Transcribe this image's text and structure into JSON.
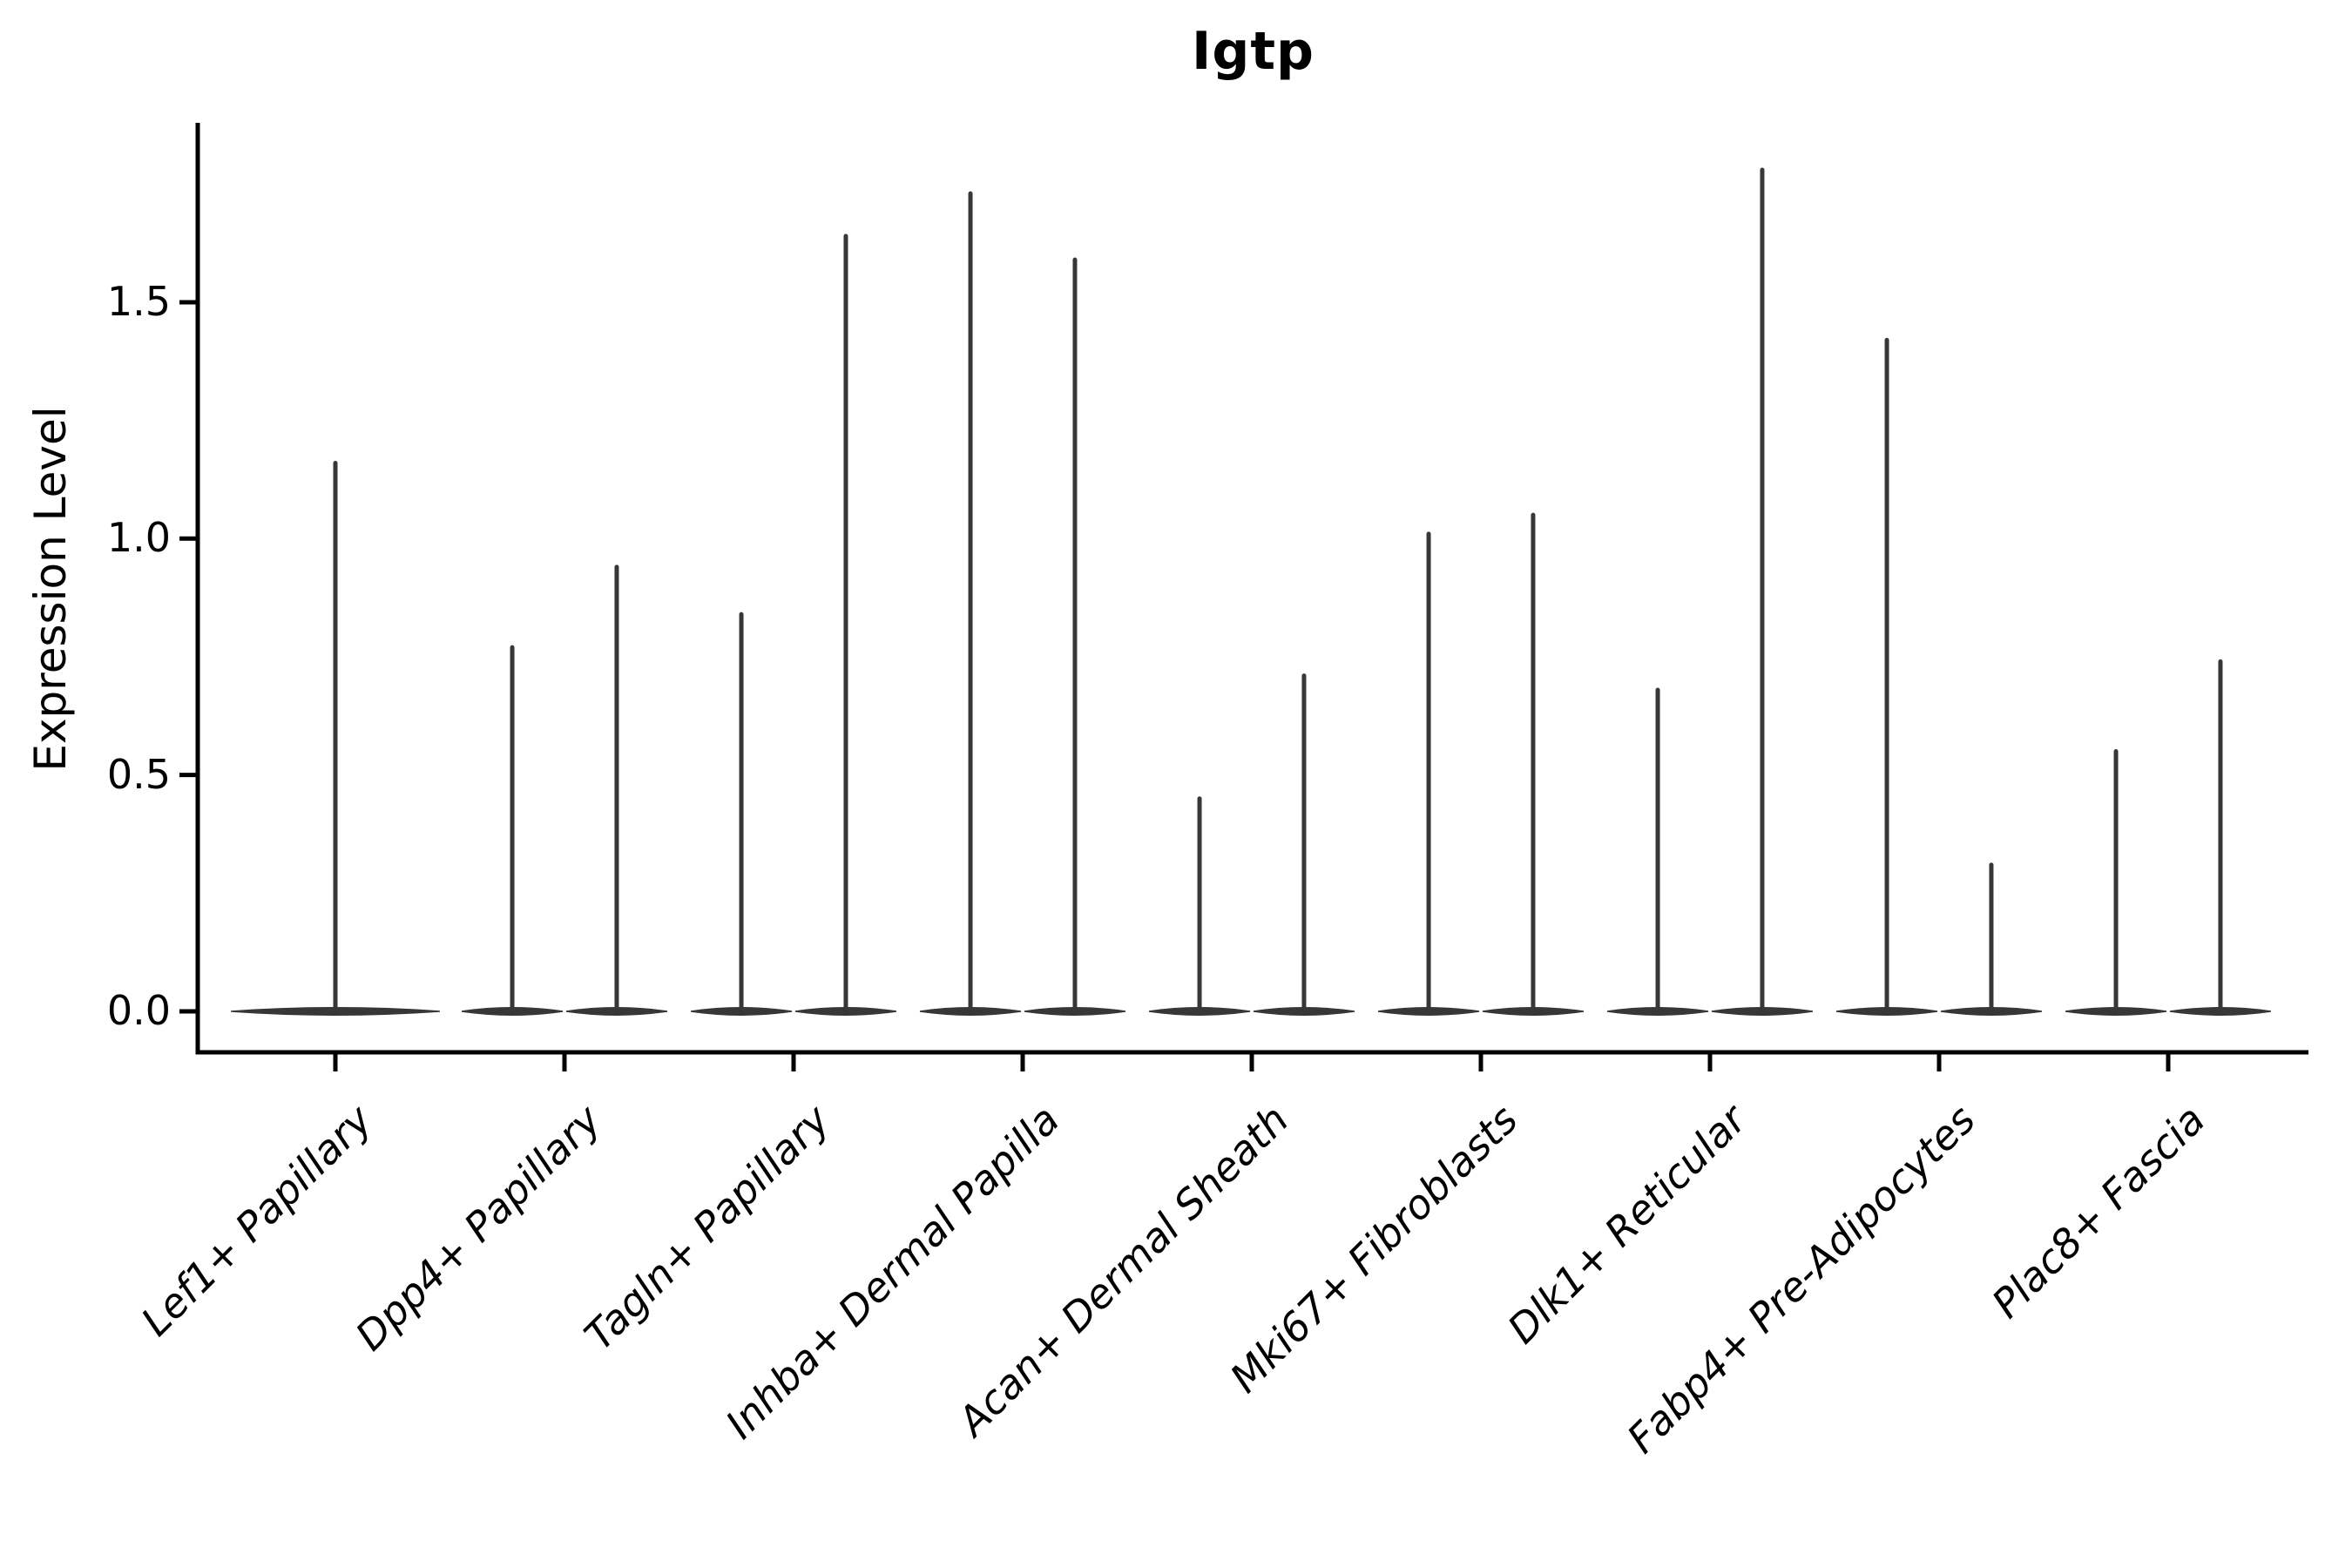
{
  "chart_data": {
    "type": "violin",
    "title": "Igtp",
    "ylabel": "Expression Level",
    "xlabel": "",
    "background_color": "#ffffff",
    "axis_color": "#000000",
    "violin_color": "#373737",
    "grid": false,
    "legend": false,
    "ylim": [
      -0.09,
      1.87
    ],
    "yticks": [
      0.0,
      0.5,
      1.0,
      1.5
    ],
    "ytick_labels": [
      "0.0",
      "0.5",
      "1.0",
      "1.5"
    ],
    "categories": [
      "Lef1+ Papillary",
      "Dpp4+ Papillary",
      "Tagln+ Papillary",
      "Inhba+ Dermal Papilla",
      "Acan+ Dermal Sheath",
      "Mki67+ Fibroblasts",
      "Dlk1+ Reticular",
      "Fabp4+ Pre-Adipocytes",
      "Plac8+ Fascia"
    ],
    "violins": [
      {
        "category": "Lef1+ Papillary",
        "spikes": [
          {
            "offset": 0.0,
            "max": 1.16,
            "half_width": 0.456
          }
        ]
      },
      {
        "category": "Dpp4+ Papillary",
        "spikes": [
          {
            "offset": -0.228,
            "max": 0.77
          },
          {
            "offset": 0.228,
            "max": 0.94
          }
        ]
      },
      {
        "category": "Tagln+ Papillary",
        "spikes": [
          {
            "offset": -0.228,
            "max": 0.84
          },
          {
            "offset": 0.228,
            "max": 1.64
          }
        ]
      },
      {
        "category": "Inhba+ Dermal Papilla",
        "spikes": [
          {
            "offset": -0.228,
            "max": 1.73
          },
          {
            "offset": 0.228,
            "max": 1.59
          }
        ]
      },
      {
        "category": "Acan+ Dermal Sheath",
        "spikes": [
          {
            "offset": -0.228,
            "max": 0.45
          },
          {
            "offset": 0.228,
            "max": 0.71
          }
        ]
      },
      {
        "category": "Mki67+ Fibroblasts",
        "spikes": [
          {
            "offset": -0.228,
            "max": 1.01
          },
          {
            "offset": 0.228,
            "max": 1.05
          }
        ]
      },
      {
        "category": "Dlk1+ Reticular",
        "spikes": [
          {
            "offset": -0.228,
            "max": 0.68
          },
          {
            "offset": 0.228,
            "max": 1.78
          }
        ]
      },
      {
        "category": "Fabp4+ Pre-Adipocytes",
        "spikes": [
          {
            "offset": -0.228,
            "max": 1.42
          },
          {
            "offset": 0.228,
            "max": 0.31
          }
        ]
      },
      {
        "category": "Plac8+ Fascia",
        "spikes": [
          {
            "offset": -0.228,
            "max": 0.55
          },
          {
            "offset": 0.228,
            "max": 0.74
          }
        ]
      }
    ],
    "baseline_value": 0.0
  }
}
